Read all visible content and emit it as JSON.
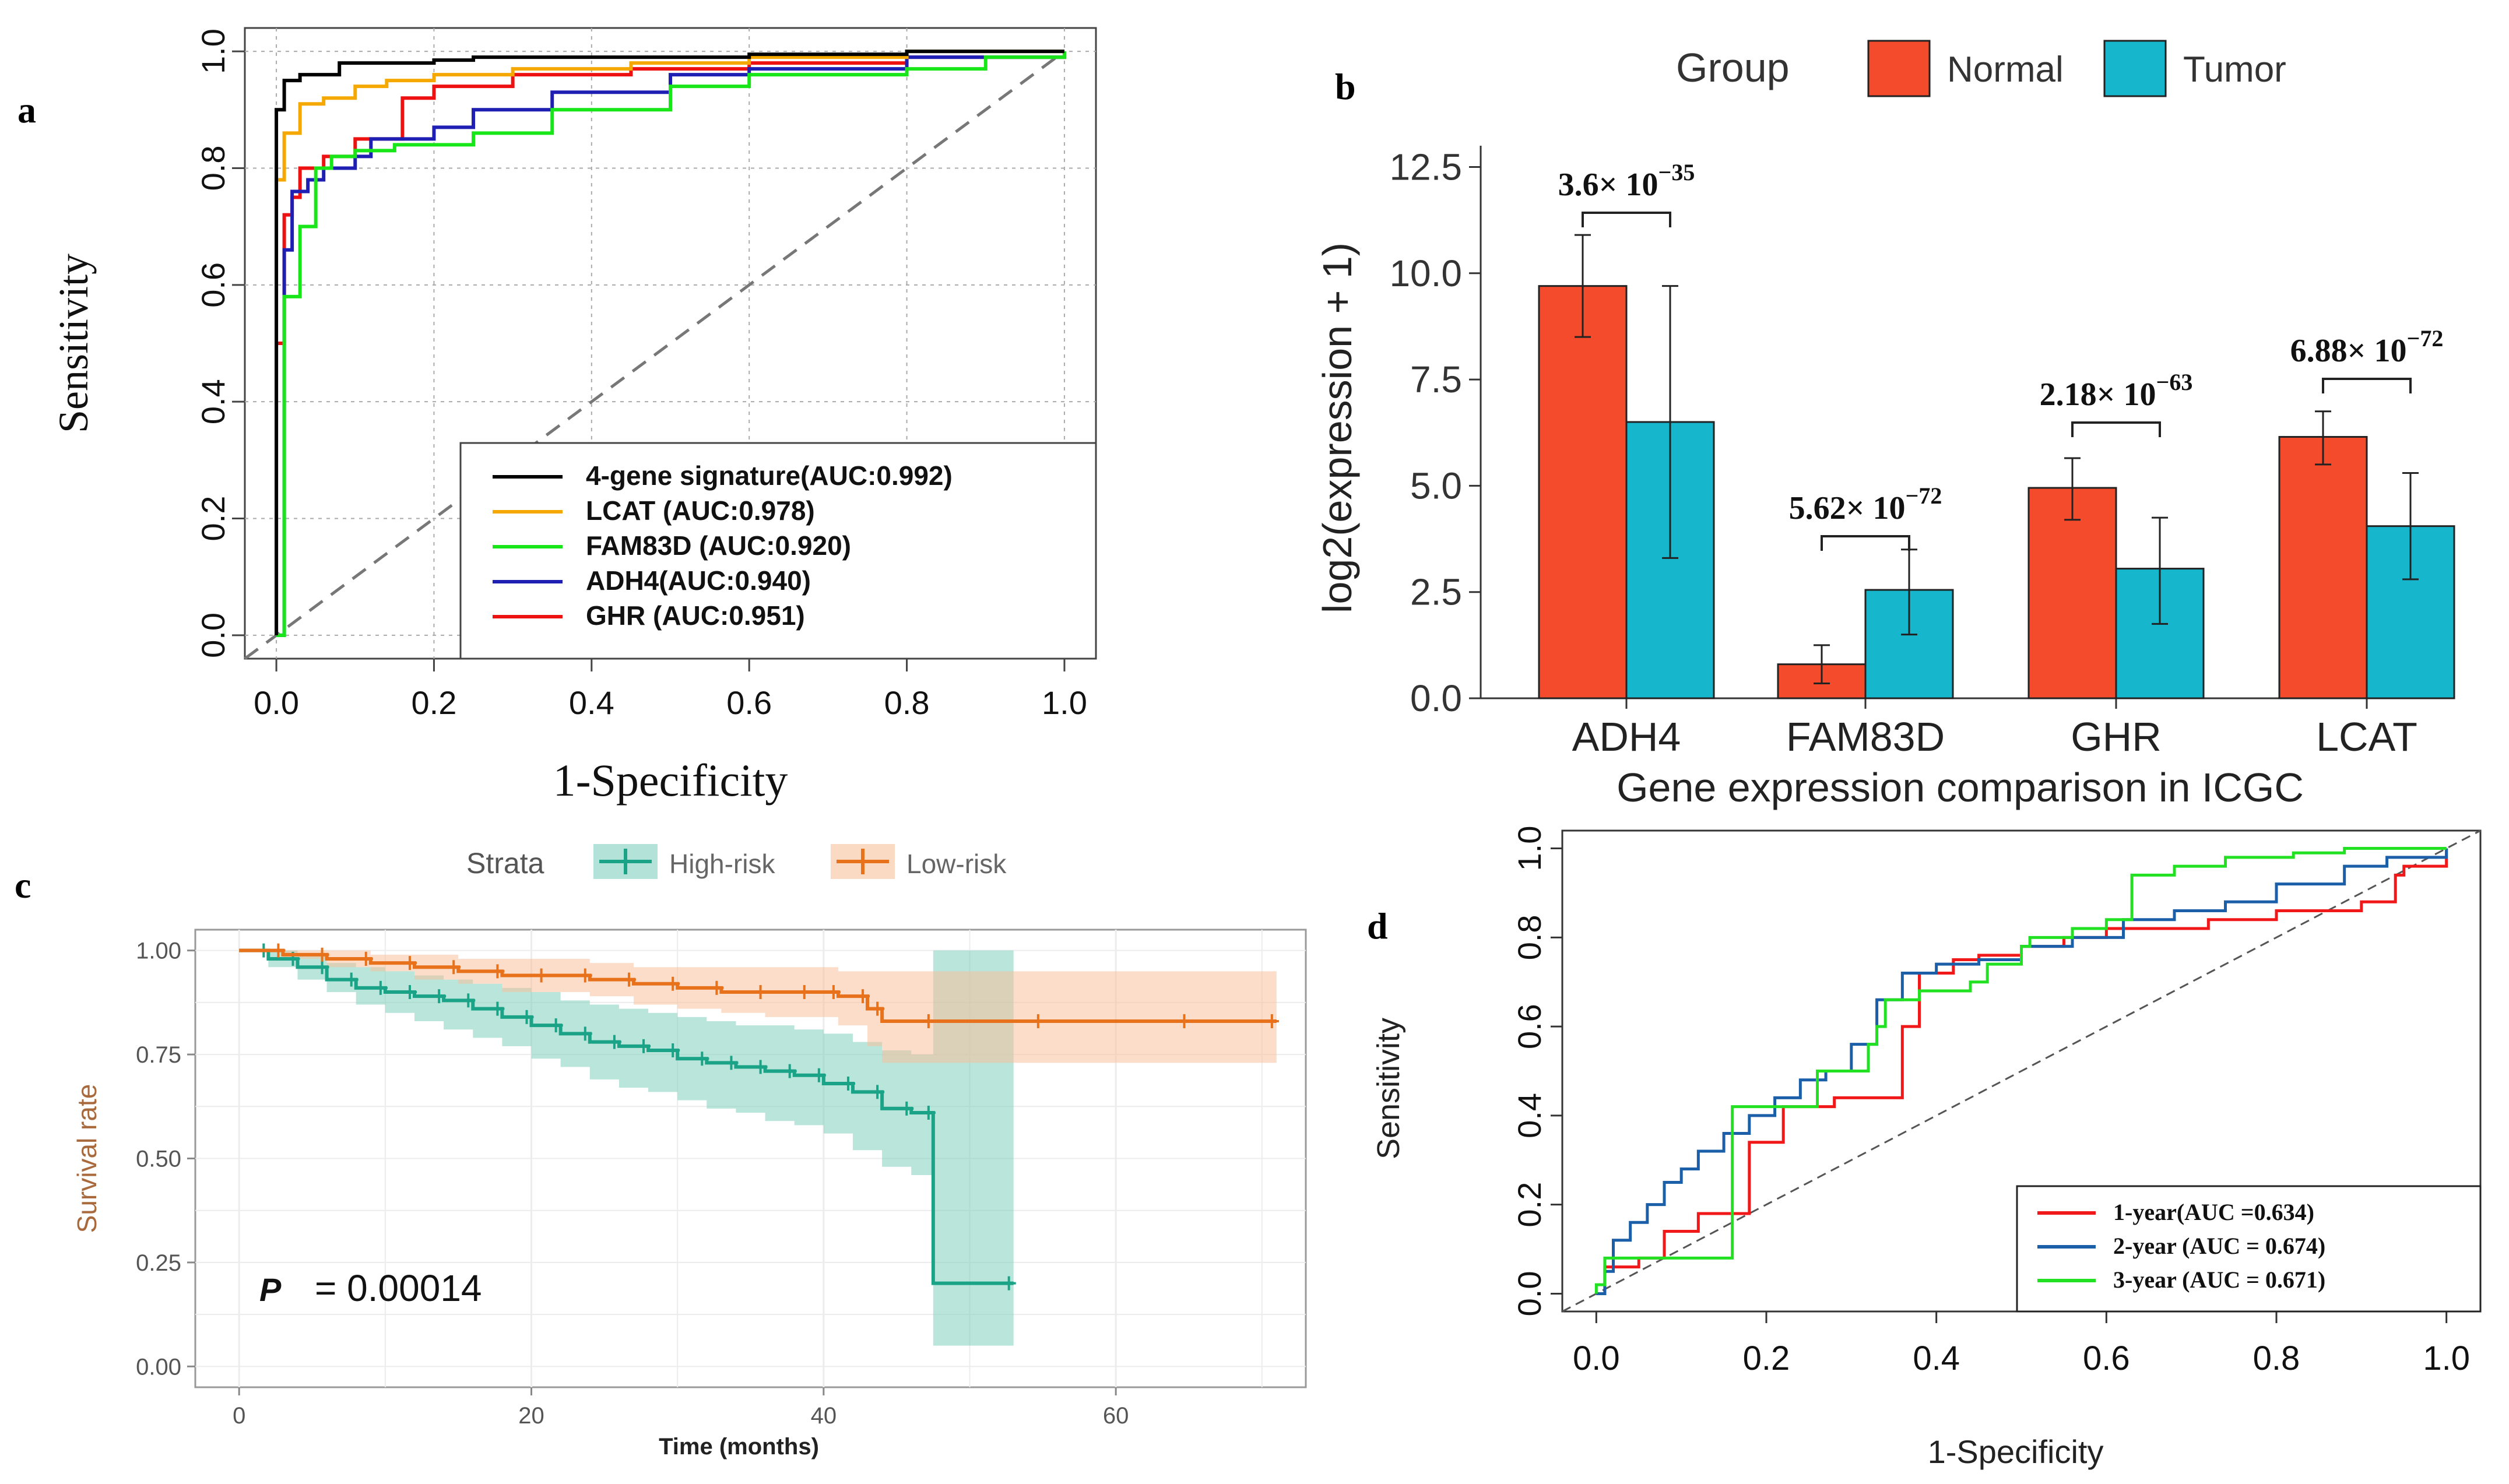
{
  "panels": {
    "a": "a",
    "b": "b",
    "c": "c",
    "d": "d"
  },
  "chart_data": [
    {
      "id": "a",
      "type": "line",
      "title": "",
      "xlabel": "1-Specificity",
      "ylabel": "Sensitivity",
      "xlim": [
        0,
        1
      ],
      "ylim": [
        0,
        1
      ],
      "xticks": [
        "0.0",
        "0.2",
        "0.4",
        "0.6",
        "0.8",
        "1.0"
      ],
      "yticks": [
        "0.0",
        "0.2",
        "0.4",
        "0.6",
        "0.8",
        "1.0"
      ],
      "grid": true,
      "diagonal": true,
      "legend_position": "bottom-right",
      "series": [
        {
          "name": "4-gene signature(AUC:0.992)",
          "color": "#000000",
          "x": [
            0,
            0,
            0.01,
            0.01,
            0.03,
            0.05,
            0.08,
            0.12,
            0.2,
            0.25,
            0.4,
            0.6,
            0.8,
            1.0
          ],
          "y": [
            0,
            0.9,
            0.93,
            0.95,
            0.96,
            0.96,
            0.98,
            0.98,
            0.985,
            0.99,
            0.99,
            0.995,
            1.0,
            1.0
          ]
        },
        {
          "name": "LCAT (AUC:0.978)",
          "color": "#f5a800",
          "x": [
            0,
            0,
            0.01,
            0.01,
            0.03,
            0.03,
            0.06,
            0.1,
            0.14,
            0.2,
            0.3,
            0.45,
            0.6,
            0.8,
            1.0
          ],
          "y": [
            0,
            0.78,
            0.8,
            0.86,
            0.88,
            0.91,
            0.92,
            0.94,
            0.95,
            0.96,
            0.97,
            0.98,
            0.99,
            1.0,
            1.0
          ]
        },
        {
          "name": "FAM83D (AUC:0.920)",
          "color": "#19e619",
          "x": [
            0,
            0.01,
            0.01,
            0.03,
            0.03,
            0.05,
            0.05,
            0.07,
            0.1,
            0.15,
            0.2,
            0.25,
            0.35,
            0.5,
            0.6,
            0.8,
            0.9,
            1.0
          ],
          "y": [
            0,
            0.47,
            0.58,
            0.6,
            0.7,
            0.75,
            0.8,
            0.82,
            0.83,
            0.84,
            0.84,
            0.86,
            0.9,
            0.94,
            0.96,
            0.97,
            0.99,
            1.0
          ]
        },
        {
          "name": "ADH4(AUC:0.940)",
          "color": "#1f1fb4",
          "x": [
            0,
            0.01,
            0.01,
            0.02,
            0.02,
            0.04,
            0.06,
            0.1,
            0.12,
            0.15,
            0.2,
            0.25,
            0.35,
            0.5,
            0.6,
            0.8,
            1.0
          ],
          "y": [
            0,
            0.62,
            0.66,
            0.72,
            0.76,
            0.78,
            0.8,
            0.82,
            0.85,
            0.85,
            0.87,
            0.9,
            0.93,
            0.96,
            0.97,
            0.99,
            1.0
          ]
        },
        {
          "name": "GHR (AUC:0.951)",
          "color": "#ee1111",
          "x": [
            0,
            0,
            0.01,
            0.01,
            0.02,
            0.03,
            0.06,
            0.1,
            0.16,
            0.2,
            0.3,
            0.45,
            0.6,
            0.8,
            1.0
          ],
          "y": [
            0,
            0.5,
            0.68,
            0.72,
            0.75,
            0.8,
            0.82,
            0.85,
            0.92,
            0.94,
            0.96,
            0.97,
            0.98,
            0.99,
            1.0
          ]
        }
      ]
    },
    {
      "id": "b",
      "type": "bar",
      "title": "",
      "xlabel": "Gene expression comparison in ICGC",
      "ylabel": "log2(expression + 1)",
      "ylim": [
        0,
        13
      ],
      "yticks": [
        "0.0",
        "2.5",
        "5.0",
        "7.5",
        "10.0",
        "12.5"
      ],
      "categories": [
        "ADH4",
        "FAM83D",
        "GHR",
        "LCAT"
      ],
      "legend_title": "Group",
      "legend_position": "top",
      "series": [
        {
          "name": "Normal",
          "color": "#f44b2c",
          "values": [
            9.7,
            0.8,
            4.95,
            6.15
          ],
          "err_low": [
            8.5,
            0.35,
            4.2,
            5.5
          ],
          "err_high": [
            10.9,
            1.25,
            5.65,
            6.75
          ]
        },
        {
          "name": "Tumor",
          "color": "#16b6cc",
          "values": [
            6.5,
            2.55,
            3.05,
            4.05
          ],
          "err_low": [
            3.3,
            1.5,
            1.75,
            2.8
          ],
          "err_high": [
            9.7,
            3.5,
            4.25,
            5.3
          ]
        }
      ],
      "annotations": [
        {
          "category": "ADH4",
          "mantissa": "3.6",
          "exponent": "−35"
        },
        {
          "category": "FAM83D",
          "mantissa": "5.62",
          "exponent": "−72"
        },
        {
          "category": "GHR",
          "mantissa": "2.18",
          "exponent": "−63"
        },
        {
          "category": "LCAT",
          "mantissa": "6.88",
          "exponent": "−72"
        }
      ],
      "times_sign": "×",
      "base": "10"
    },
    {
      "id": "c",
      "type": "line",
      "title": "",
      "xlabel": "Time (months)",
      "ylabel": "Survival rate",
      "xlim": [
        -3,
        73
      ],
      "ylim": [
        0,
        1
      ],
      "xticks": [
        "0",
        "20",
        "40",
        "60"
      ],
      "yticks": [
        "0.00",
        "0.25",
        "0.50",
        "0.75",
        "1.00"
      ],
      "legend_title": "Strata",
      "legend_position": "top",
      "p_label": "P",
      "p_value": "= 0.00014",
      "series": [
        {
          "name": "High-risk",
          "color": "#1aa386",
          "band_color": "#80cfbe",
          "x": [
            0,
            2,
            4,
            6,
            8,
            10,
            12,
            14,
            16,
            18,
            20,
            22,
            24,
            26,
            28,
            30,
            32,
            34,
            36,
            38,
            40,
            42,
            44,
            46,
            47.5,
            53
          ],
          "y": [
            1.0,
            0.98,
            0.96,
            0.93,
            0.91,
            0.9,
            0.89,
            0.88,
            0.86,
            0.84,
            0.82,
            0.8,
            0.78,
            0.77,
            0.76,
            0.74,
            0.73,
            0.72,
            0.71,
            0.7,
            0.68,
            0.66,
            0.62,
            0.61,
            0.2,
            0.2
          ],
          "lower": [
            1.0,
            0.96,
            0.93,
            0.9,
            0.87,
            0.85,
            0.83,
            0.81,
            0.79,
            0.77,
            0.74,
            0.72,
            0.69,
            0.67,
            0.66,
            0.64,
            0.62,
            0.61,
            0.59,
            0.58,
            0.56,
            0.52,
            0.48,
            0.46,
            0.05,
            0.05
          ],
          "upper": [
            1.0,
            1.0,
            0.99,
            0.97,
            0.96,
            0.95,
            0.94,
            0.93,
            0.92,
            0.91,
            0.9,
            0.88,
            0.87,
            0.86,
            0.85,
            0.84,
            0.83,
            0.82,
            0.82,
            0.81,
            0.8,
            0.78,
            0.76,
            0.75,
            1.0,
            1.0
          ]
        },
        {
          "name": "Low-risk",
          "color": "#e8721c",
          "band_color": "#f8c19c",
          "x": [
            0,
            3,
            6,
            9,
            12,
            15,
            18,
            21,
            24,
            27,
            30,
            33,
            36,
            39,
            41,
            43,
            44,
            47.5,
            55,
            65,
            71
          ],
          "y": [
            1.0,
            0.99,
            0.98,
            0.97,
            0.96,
            0.95,
            0.94,
            0.94,
            0.93,
            0.92,
            0.91,
            0.9,
            0.9,
            0.9,
            0.89,
            0.86,
            0.83,
            0.83,
            0.83,
            0.83,
            0.83
          ],
          "lower": [
            1.0,
            0.98,
            0.96,
            0.95,
            0.93,
            0.92,
            0.9,
            0.9,
            0.89,
            0.87,
            0.86,
            0.85,
            0.84,
            0.84,
            0.82,
            0.77,
            0.73,
            0.73,
            0.73,
            0.73,
            0.73
          ],
          "upper": [
            1.0,
            1.0,
            1.0,
            0.99,
            0.99,
            0.98,
            0.98,
            0.98,
            0.97,
            0.96,
            0.96,
            0.96,
            0.96,
            0.96,
            0.95,
            0.95,
            0.95,
            0.95,
            0.95,
            0.95,
            0.95
          ]
        }
      ]
    },
    {
      "id": "d",
      "type": "line",
      "title": "",
      "xlabel": "1-Specificity",
      "ylabel": "Sensitivity",
      "xlim": [
        0,
        1
      ],
      "ylim": [
        0,
        1
      ],
      "xticks": [
        "0.0",
        "0.2",
        "0.4",
        "0.6",
        "0.8",
        "1.0"
      ],
      "yticks": [
        "0.0",
        "0.2",
        "0.4",
        "0.6",
        "0.8",
        "1.0"
      ],
      "diagonal": true,
      "legend_position": "bottom-right",
      "series": [
        {
          "name": "1-year(AUC =0.634)",
          "color": "#f01818",
          "x": [
            0,
            0.01,
            0.01,
            0.05,
            0.08,
            0.08,
            0.12,
            0.15,
            0.18,
            0.18,
            0.22,
            0.22,
            0.28,
            0.3,
            0.33,
            0.36,
            0.38,
            0.42,
            0.45,
            0.5,
            0.55,
            0.6,
            0.66,
            0.72,
            0.8,
            0.9,
            0.94,
            0.95,
            1.0
          ],
          "y": [
            0,
            0,
            0.06,
            0.08,
            0.08,
            0.14,
            0.18,
            0.18,
            0.3,
            0.34,
            0.38,
            0.42,
            0.44,
            0.44,
            0.44,
            0.6,
            0.72,
            0.75,
            0.76,
            0.78,
            0.8,
            0.82,
            0.82,
            0.84,
            0.86,
            0.88,
            0.94,
            0.96,
            1.0
          ]
        },
        {
          "name": "2-year (AUC = 0.674)",
          "color": "#1a5fa8",
          "x": [
            0,
            0.01,
            0.02,
            0.04,
            0.06,
            0.08,
            0.1,
            0.12,
            0.15,
            0.18,
            0.21,
            0.24,
            0.27,
            0.3,
            0.33,
            0.36,
            0.4,
            0.45,
            0.5,
            0.56,
            0.62,
            0.68,
            0.74,
            0.8,
            0.88,
            0.93,
            1.0
          ],
          "y": [
            0,
            0.05,
            0.12,
            0.16,
            0.2,
            0.25,
            0.28,
            0.32,
            0.36,
            0.4,
            0.44,
            0.48,
            0.5,
            0.56,
            0.66,
            0.72,
            0.74,
            0.75,
            0.78,
            0.8,
            0.84,
            0.86,
            0.88,
            0.92,
            0.96,
            0.98,
            1.0
          ]
        },
        {
          "name": "3-year (AUC = 0.671)",
          "color": "#22e022",
          "x": [
            0,
            0,
            0.01,
            0.08,
            0.15,
            0.16,
            0.2,
            0.24,
            0.26,
            0.32,
            0.33,
            0.34,
            0.38,
            0.44,
            0.46,
            0.5,
            0.51,
            0.56,
            0.6,
            0.62,
            0.63,
            0.68,
            0.74,
            0.82,
            0.88,
            0.94,
            1.0
          ],
          "y": [
            0,
            0.02,
            0.08,
            0.08,
            0.08,
            0.42,
            0.42,
            0.42,
            0.5,
            0.56,
            0.6,
            0.66,
            0.68,
            0.7,
            0.74,
            0.78,
            0.8,
            0.82,
            0.84,
            0.84,
            0.94,
            0.96,
            0.98,
            0.99,
            1.0,
            1.0,
            1.0
          ]
        }
      ]
    }
  ]
}
